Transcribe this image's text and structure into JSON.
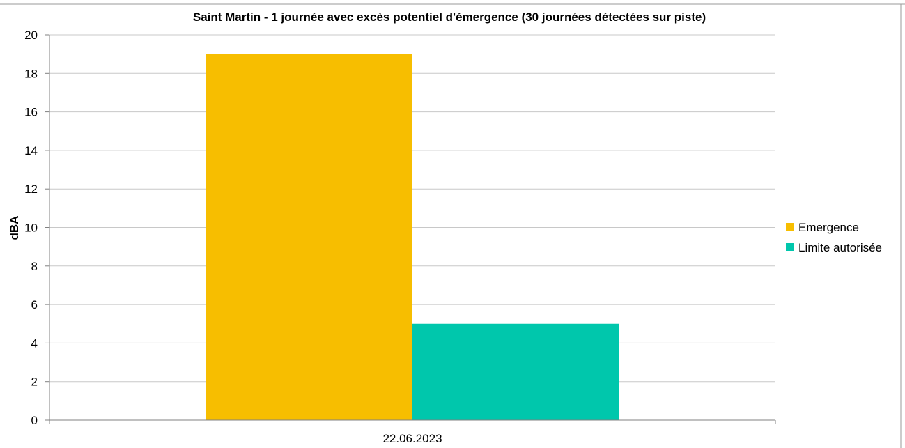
{
  "chart_data": {
    "type": "bar",
    "title": "Saint Martin - 1 journée avec excès potentiel d'émergence (30 journées détectées sur piste)",
    "xlabel": "",
    "ylabel": "dBA",
    "categories": [
      "22.06.2023"
    ],
    "series": [
      {
        "name": "Emergence",
        "values": [
          19
        ],
        "color": "#F7BE00"
      },
      {
        "name": "Limite autorisée",
        "values": [
          5
        ],
        "color": "#00C7AC"
      }
    ],
    "ylim": [
      0,
      20
    ],
    "yticks": [
      0,
      2,
      4,
      6,
      8,
      10,
      12,
      14,
      16,
      18,
      20
    ],
    "grid": true,
    "legend_position": "right"
  }
}
